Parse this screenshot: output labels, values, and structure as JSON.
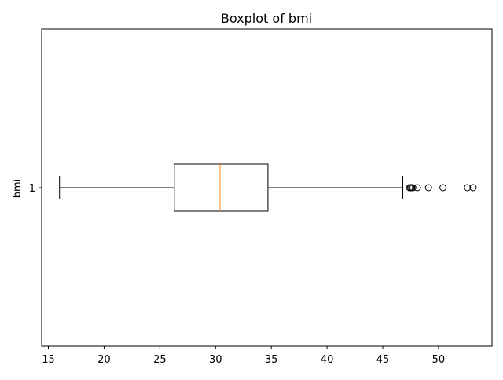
{
  "chart_data": {
    "type": "boxplot",
    "orientation": "horizontal",
    "title": "Boxplot of bmi",
    "xlabel": "",
    "ylabel": "bmi",
    "xlim": [
      14.4,
      54.8
    ],
    "x_ticks": [
      15,
      20,
      25,
      30,
      35,
      40,
      45,
      50
    ],
    "y_ticks": [
      "1"
    ],
    "grid": false,
    "series": [
      {
        "category": "1",
        "whisker_low": 16.0,
        "q1": 26.3,
        "median": 30.4,
        "q3": 34.7,
        "whisker_high": 46.8,
        "outliers": [
          47.4,
          47.5,
          47.6,
          47.7,
          48.1,
          49.1,
          50.4,
          52.6,
          53.1
        ]
      }
    ],
    "colors": {
      "box": "#000000",
      "median": "#ff7f0e",
      "whisker": "#000000",
      "outlier_edge": "#000000"
    }
  }
}
